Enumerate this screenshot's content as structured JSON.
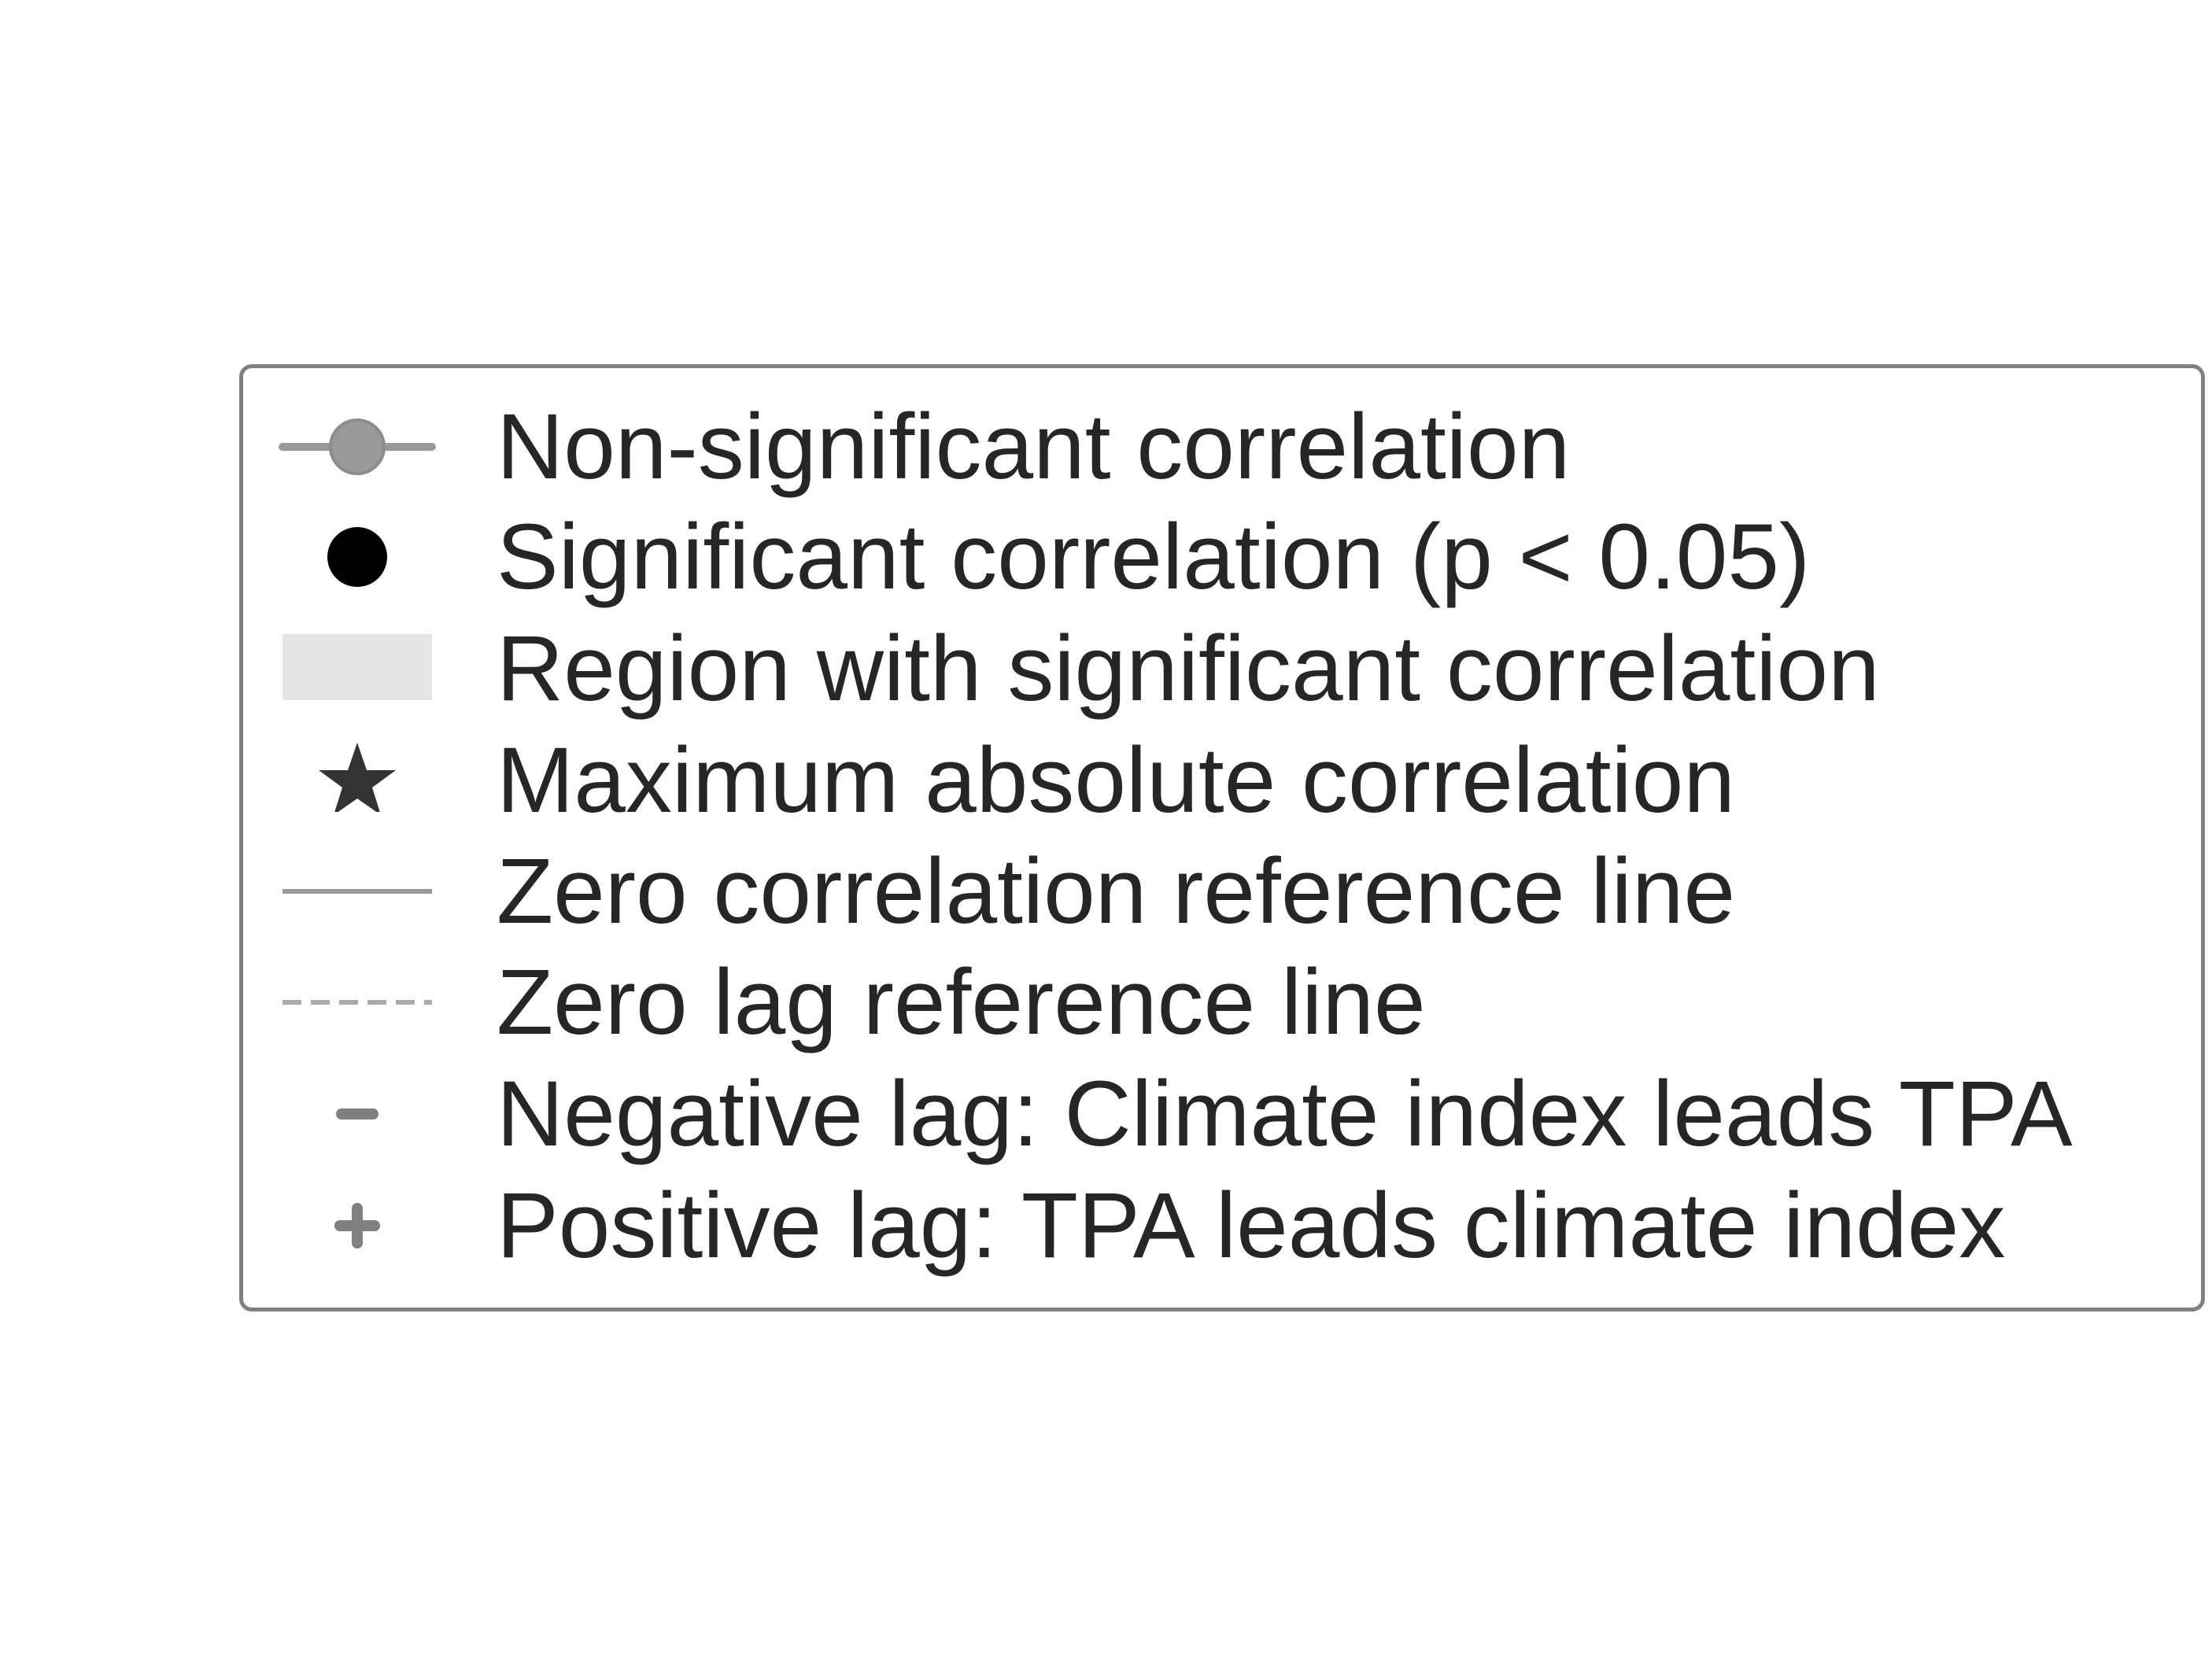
{
  "chart_data": {
    "type": "legend",
    "legend_entries": [
      {
        "label": "Non-significant correlation",
        "marker": "circle-with-line",
        "color": "#999999"
      },
      {
        "label": "Significant correlation (p < 0.05)",
        "marker": "filled-circle",
        "color": "#000000"
      },
      {
        "label": "Region with significant correlation",
        "marker": "shaded-rectangle",
        "color": "#e5e5e5"
      },
      {
        "label": "Maximum absolute correlation",
        "marker": "star",
        "color": "#333333"
      },
      {
        "label": "Zero correlation reference line",
        "marker": "solid-line",
        "color": "#999999"
      },
      {
        "label": "Zero lag reference line",
        "marker": "dashed-line",
        "color": "#aaaaaa"
      },
      {
        "label": "Negative lag: Climate index leads TPA",
        "marker": "minus",
        "color": "#808080"
      },
      {
        "label": "Positive lag: TPA leads climate index",
        "marker": "plus",
        "color": "#808080"
      }
    ]
  }
}
